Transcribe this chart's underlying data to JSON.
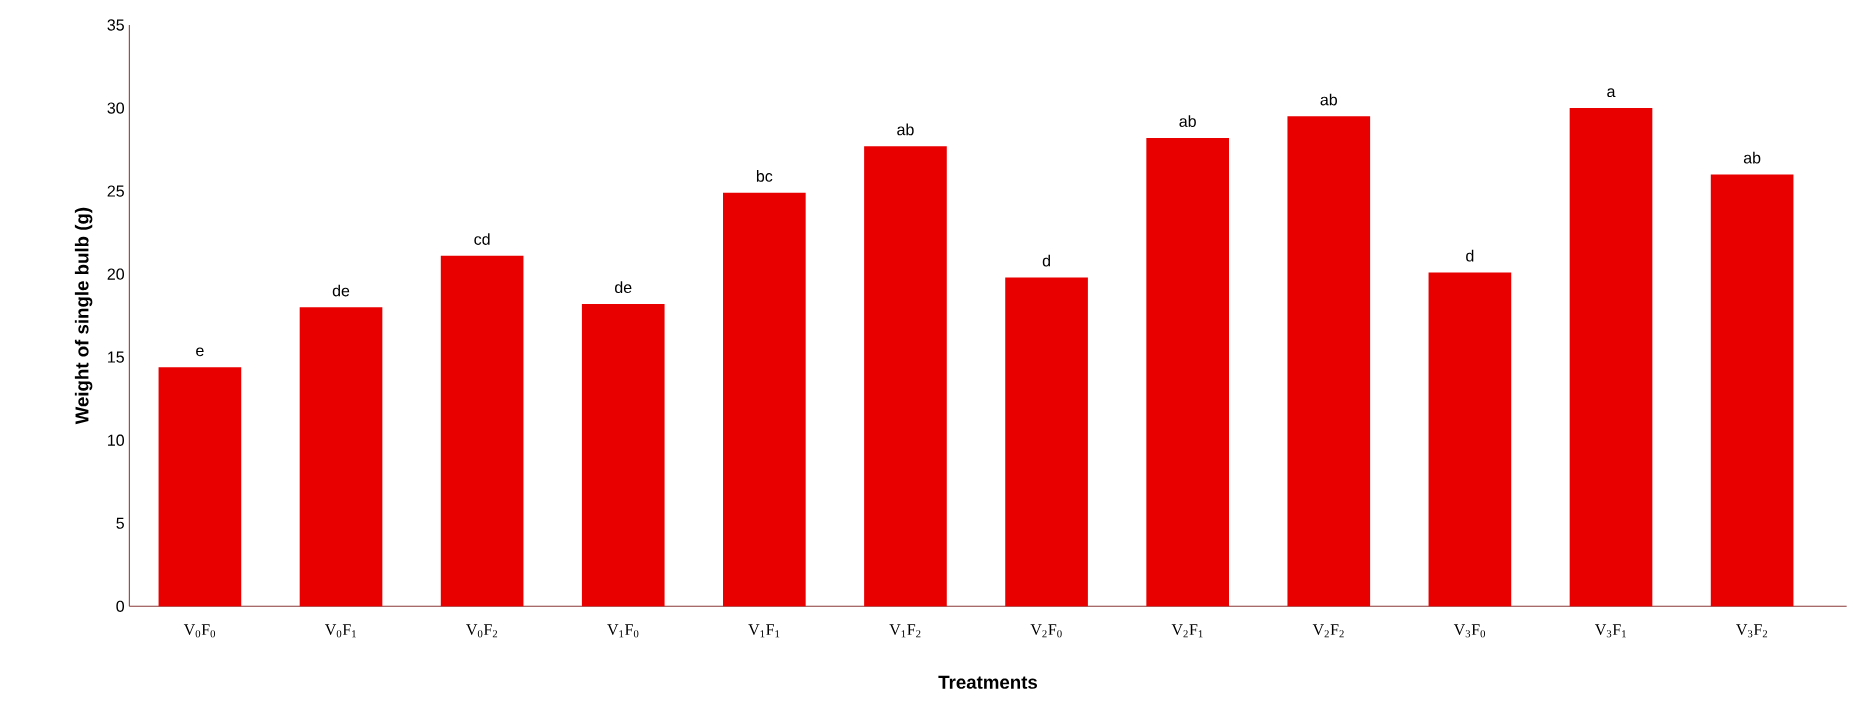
{
  "chart_data": {
    "type": "bar",
    "xlabel": "Treatments",
    "ylabel": "Weight of single bulb (g)",
    "categories": [
      "V$_{0}$F$_{0}$",
      "V$_{0}$F$_{1}$",
      "V$_{0}$F$_{2}$",
      "V$_{1}$F$_{0}$",
      "V$_{1}$F$_{1}$",
      "V$_{1}$F$_{2}$",
      "V$_{2}$F$_{0}$",
      "V$_{2}$F$_{1}$",
      "V$_{2}$F$_{2}$",
      "V$_{3}$F$_{0}$",
      "V$_{3}$F$_{1}$",
      "V$_{3}$F$_{2}$"
    ],
    "values": [
      14.4,
      18.0,
      21.1,
      18.2,
      24.9,
      27.7,
      19.8,
      28.2,
      29.5,
      20.1,
      30.0,
      26.0
    ],
    "color": "#e80000",
    "ylim": [
      0,
      35
    ],
    "yticks": [
      0,
      5,
      10,
      15,
      20,
      25,
      30,
      35
    ],
    "grid": false,
    "annotations": [
      {
        "text": "e",
        "x": "V$_{0}$F$_{0}$",
        "y": 14.4
      },
      {
        "text": "de",
        "x": "V$_{0}$F$_{1}$",
        "y": 18.0
      },
      {
        "text": "cd",
        "x": "V$_{0}$F$_{2}$",
        "y": 21.1
      },
      {
        "text": "de",
        "x": "V$_{1}$F$_{0}$",
        "y": 18.2
      },
      {
        "text": "bc",
        "x": "V$_{1}$F$_{1}$",
        "y": 24.9
      },
      {
        "text": "ab",
        "x": "V$_{1}$F$_{2}$",
        "y": 27.7
      },
      {
        "text": "d",
        "x": "V$_{2}$F$_{0}$",
        "y": 19.8
      },
      {
        "text": "ab",
        "x": "V$_{2}$F$_{1}$",
        "y": 28.2
      },
      {
        "text": "ab",
        "x": "V$_{2}$F$_{2}$",
        "y": 29.5
      },
      {
        "text": "d",
        "x": "V$_{3}$F$_{0}$",
        "y": 20.1
      },
      {
        "text": "a",
        "x": "V$_{3}$F$_{1}$",
        "y": 30.0
      },
      {
        "text": "ab",
        "x": "V$_{3}$F$_{2}$",
        "y": 26.0
      }
    ]
  }
}
